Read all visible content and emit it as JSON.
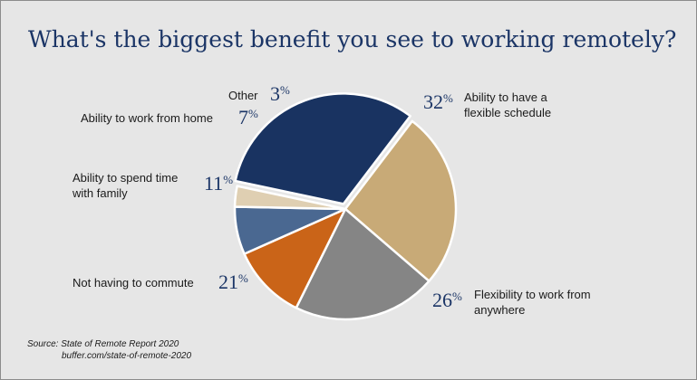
{
  "title": "What's the biggest benefit you see to working remotely?",
  "source": {
    "line1": "Source: State of Remote Report 2020",
    "line2": "buffer.com/state-of-remote-2020"
  },
  "chart_data": {
    "type": "pie",
    "title": "What's the biggest benefit you see to working remotely?",
    "unit": "%",
    "slices": [
      {
        "label": "Ability to have a flexible schedule",
        "label_lines": [
          "Ability to have a",
          "flexible schedule"
        ],
        "value": 32,
        "color": "#193361"
      },
      {
        "label": "Flexibility to work from anywhere",
        "label_lines": [
          "Flexibility to work from",
          "anywhere"
        ],
        "value": 26,
        "color": "#c8aa77"
      },
      {
        "label": "Not having to commute",
        "label_lines": [
          "Not having to commute"
        ],
        "value": 21,
        "color": "#858585"
      },
      {
        "label": "Ability to spend time with family",
        "label_lines": [
          "Ability to spend time",
          "with family"
        ],
        "value": 11,
        "color": "#ca6418"
      },
      {
        "label": "Ability to work from home",
        "label_lines": [
          "Ability to work from home"
        ],
        "value": 7,
        "color": "#4a6891"
      },
      {
        "label": "Other",
        "label_lines": [
          "Other"
        ],
        "value": 3,
        "color": "#dfcfb2"
      }
    ]
  }
}
